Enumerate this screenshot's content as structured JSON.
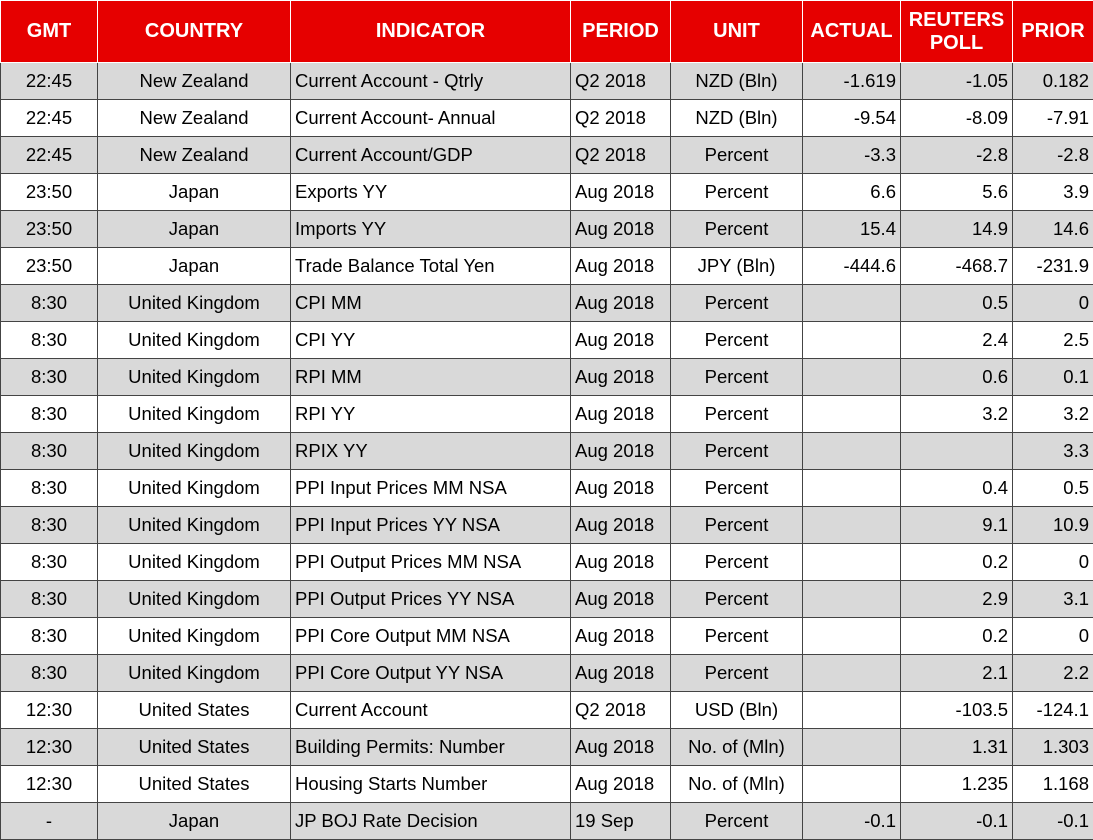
{
  "table": {
    "header": [
      "GMT",
      "COUNTRY",
      "INDICATOR",
      "PERIOD",
      "UNIT",
      "ACTUAL",
      "REUTERS POLL",
      "PRIOR"
    ],
    "rows": [
      [
        "22:45",
        "New Zealand",
        "Current Account - Qtrly",
        "Q2 2018",
        "NZD (Bln)",
        "-1.619",
        "-1.05",
        "0.182"
      ],
      [
        "22:45",
        "New Zealand",
        "Current Account- Annual",
        "Q2 2018",
        "NZD (Bln)",
        "-9.54",
        "-8.09",
        "-7.91"
      ],
      [
        "22:45",
        "New Zealand",
        "Current Account/GDP",
        "Q2 2018",
        "Percent",
        "-3.3",
        "-2.8",
        "-2.8"
      ],
      [
        "23:50",
        "Japan",
        "Exports YY",
        "Aug 2018",
        "Percent",
        "6.6",
        "5.6",
        "3.9"
      ],
      [
        "23:50",
        "Japan",
        "Imports YY",
        "Aug 2018",
        "Percent",
        "15.4",
        "14.9",
        "14.6"
      ],
      [
        "23:50",
        "Japan",
        "Trade Balance Total Yen",
        "Aug 2018",
        "JPY (Bln)",
        "-444.6",
        "-468.7",
        "-231.9"
      ],
      [
        "8:30",
        "United Kingdom",
        "CPI MM",
        "Aug 2018",
        "Percent",
        null,
        "0.5",
        "0"
      ],
      [
        "8:30",
        "United Kingdom",
        "CPI YY",
        "Aug 2018",
        "Percent",
        null,
        "2.4",
        "2.5"
      ],
      [
        "8:30",
        "United Kingdom",
        "RPI MM",
        "Aug 2018",
        "Percent",
        null,
        "0.6",
        "0.1"
      ],
      [
        "8:30",
        "United Kingdom",
        "RPI YY",
        "Aug 2018",
        "Percent",
        null,
        "3.2",
        "3.2"
      ],
      [
        "8:30",
        "United Kingdom",
        "RPIX YY",
        "Aug 2018",
        "Percent",
        null,
        null,
        "3.3"
      ],
      [
        "8:30",
        "United Kingdom",
        "PPI Input Prices MM NSA",
        "Aug 2018",
        "Percent",
        null,
        "0.4",
        "0.5"
      ],
      [
        "8:30",
        "United Kingdom",
        "PPI Input Prices YY NSA",
        "Aug 2018",
        "Percent",
        null,
        "9.1",
        "10.9"
      ],
      [
        "8:30",
        "United Kingdom",
        "PPI Output Prices MM NSA",
        "Aug 2018",
        "Percent",
        null,
        "0.2",
        "0"
      ],
      [
        "8:30",
        "United Kingdom",
        "PPI Output Prices YY NSA",
        "Aug 2018",
        "Percent",
        null,
        "2.9",
        "3.1"
      ],
      [
        "8:30",
        "United Kingdom",
        "PPI Core Output MM NSA",
        "Aug 2018",
        "Percent",
        null,
        "0.2",
        "0"
      ],
      [
        "8:30",
        "United Kingdom",
        "PPI Core Output YY NSA",
        "Aug 2018",
        "Percent",
        null,
        "2.1",
        "2.2"
      ],
      [
        "12:30",
        "United States",
        "Current Account",
        "Q2 2018",
        "USD (Bln)",
        null,
        "-103.5",
        "-124.1"
      ],
      [
        "12:30",
        "United States",
        "Building Permits: Number",
        "Aug 2018",
        "No. of (Mln)",
        null,
        "1.31",
        "1.303"
      ],
      [
        "12:30",
        "United States",
        "Housing Starts Number",
        "Aug 2018",
        "No. of (Mln)",
        null,
        "1.235",
        "1.168"
      ],
      [
        "-",
        "Japan",
        "JP BOJ Rate Decision",
        "19 Sep",
        "Percent",
        "-0.1",
        "-0.1",
        "-0.1"
      ]
    ]
  }
}
